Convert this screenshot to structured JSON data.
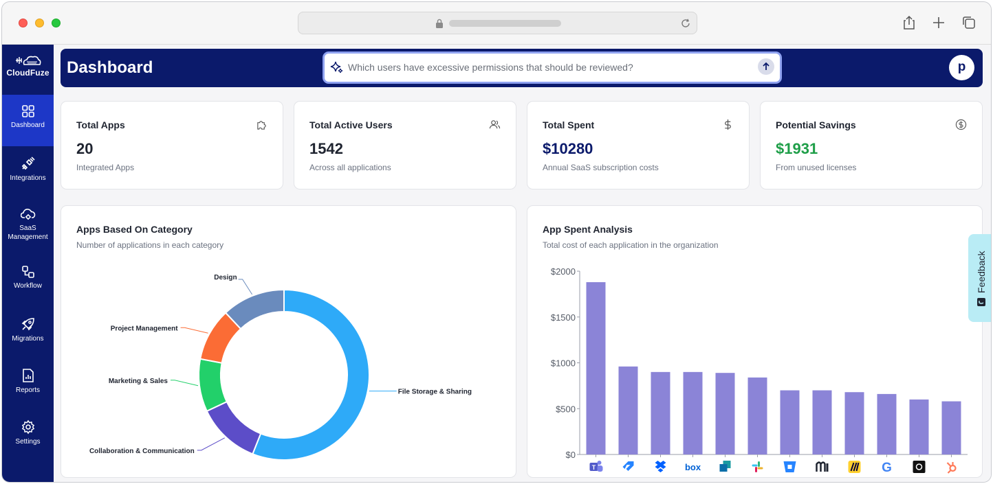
{
  "app": {
    "brand": "CloudFuze",
    "accent": "#0b1a6b",
    "active_nav": "#1d37c7"
  },
  "sidebar": {
    "items": [
      {
        "label": "Dashboard",
        "icon": "grid-icon",
        "active": true
      },
      {
        "label": "Integrations",
        "icon": "plug-icon",
        "active": false
      },
      {
        "label": "SaaS Management",
        "icon": "cloud-gear-icon",
        "active": false
      },
      {
        "label": "Workflow",
        "icon": "workflow-icon",
        "active": false
      },
      {
        "label": "Migrations",
        "icon": "rocket-icon",
        "active": false
      },
      {
        "label": "Reports",
        "icon": "report-icon",
        "active": false
      },
      {
        "label": "Settings",
        "icon": "gear-icon",
        "active": false
      }
    ]
  },
  "header": {
    "title": "Dashboard",
    "ask_placeholder": "Which users have excessive permissions that should be reviewed?",
    "avatar_initial": "p"
  },
  "stats": [
    {
      "title": "Total Apps",
      "value": "20",
      "sub": "Integrated Apps",
      "icon": "puzzle-icon",
      "value_color": "#1f2430"
    },
    {
      "title": "Total Active Users",
      "value": "1542",
      "sub": "Across all applications",
      "icon": "users-icon",
      "value_color": "#1f2430"
    },
    {
      "title": "Total Spent",
      "value": "$10280",
      "sub": "Annual SaaS subscription costs",
      "icon": "dollar-icon",
      "value_color": "#0b1a6b"
    },
    {
      "title": "Potential Savings",
      "value": "$1931",
      "sub": "From unused licenses",
      "icon": "dollar-circle-icon",
      "value_color": "#1e9e48"
    }
  ],
  "category_panel": {
    "title": "Apps Based On Category",
    "subtitle": "Number of applications in each category"
  },
  "spend_panel": {
    "title": "App Spent Analysis",
    "subtitle": "Total cost of each application in the organization"
  },
  "feedback": {
    "label": "Feedback"
  },
  "chart_data": [
    {
      "type": "pie",
      "title": "Apps Based On Category",
      "subtitle": "Number of applications in each category",
      "slices": [
        {
          "label": "File Storage & Sharing",
          "value": 56,
          "color": "#2eaaf8"
        },
        {
          "label": "Collaboration & Communication",
          "value": 12,
          "color": "#5c4dc8"
        },
        {
          "label": "Marketing & Sales",
          "value": 10,
          "color": "#22d06a"
        },
        {
          "label": "Project Management",
          "value": 10,
          "color": "#fb6c35"
        },
        {
          "label": "Design",
          "value": 12,
          "color": "#6a8bbd"
        }
      ]
    },
    {
      "type": "bar",
      "title": "App Spent Analysis",
      "subtitle": "Total cost of each application in the organization",
      "categories": [
        "Microsoft Teams",
        "Jira",
        "Dropbox",
        "Box",
        "Microsoft Sharepoint",
        "Slack",
        "Bitbucket",
        "Monday",
        "Miro",
        "Google",
        "Notion",
        "HubSpot"
      ],
      "category_icons": [
        "teams-icon",
        "jira-icon",
        "dropbox-icon",
        "box-icon",
        "sharepoint-icon",
        "slack-icon",
        "bitbucket-icon",
        "monday-icon",
        "miro-icon",
        "google-icon",
        "notion-icon",
        "hubspot-icon"
      ],
      "values": [
        1880,
        960,
        900,
        900,
        890,
        840,
        700,
        700,
        680,
        660,
        600,
        580
      ],
      "ylim": [
        0,
        2000
      ],
      "yticks": [
        0,
        500,
        1000,
        1500,
        2000
      ],
      "ytick_labels": [
        "$0",
        "$500",
        "$1000",
        "$1500",
        "$2000"
      ],
      "bar_color": "#8b84d7",
      "grid": false
    }
  ]
}
